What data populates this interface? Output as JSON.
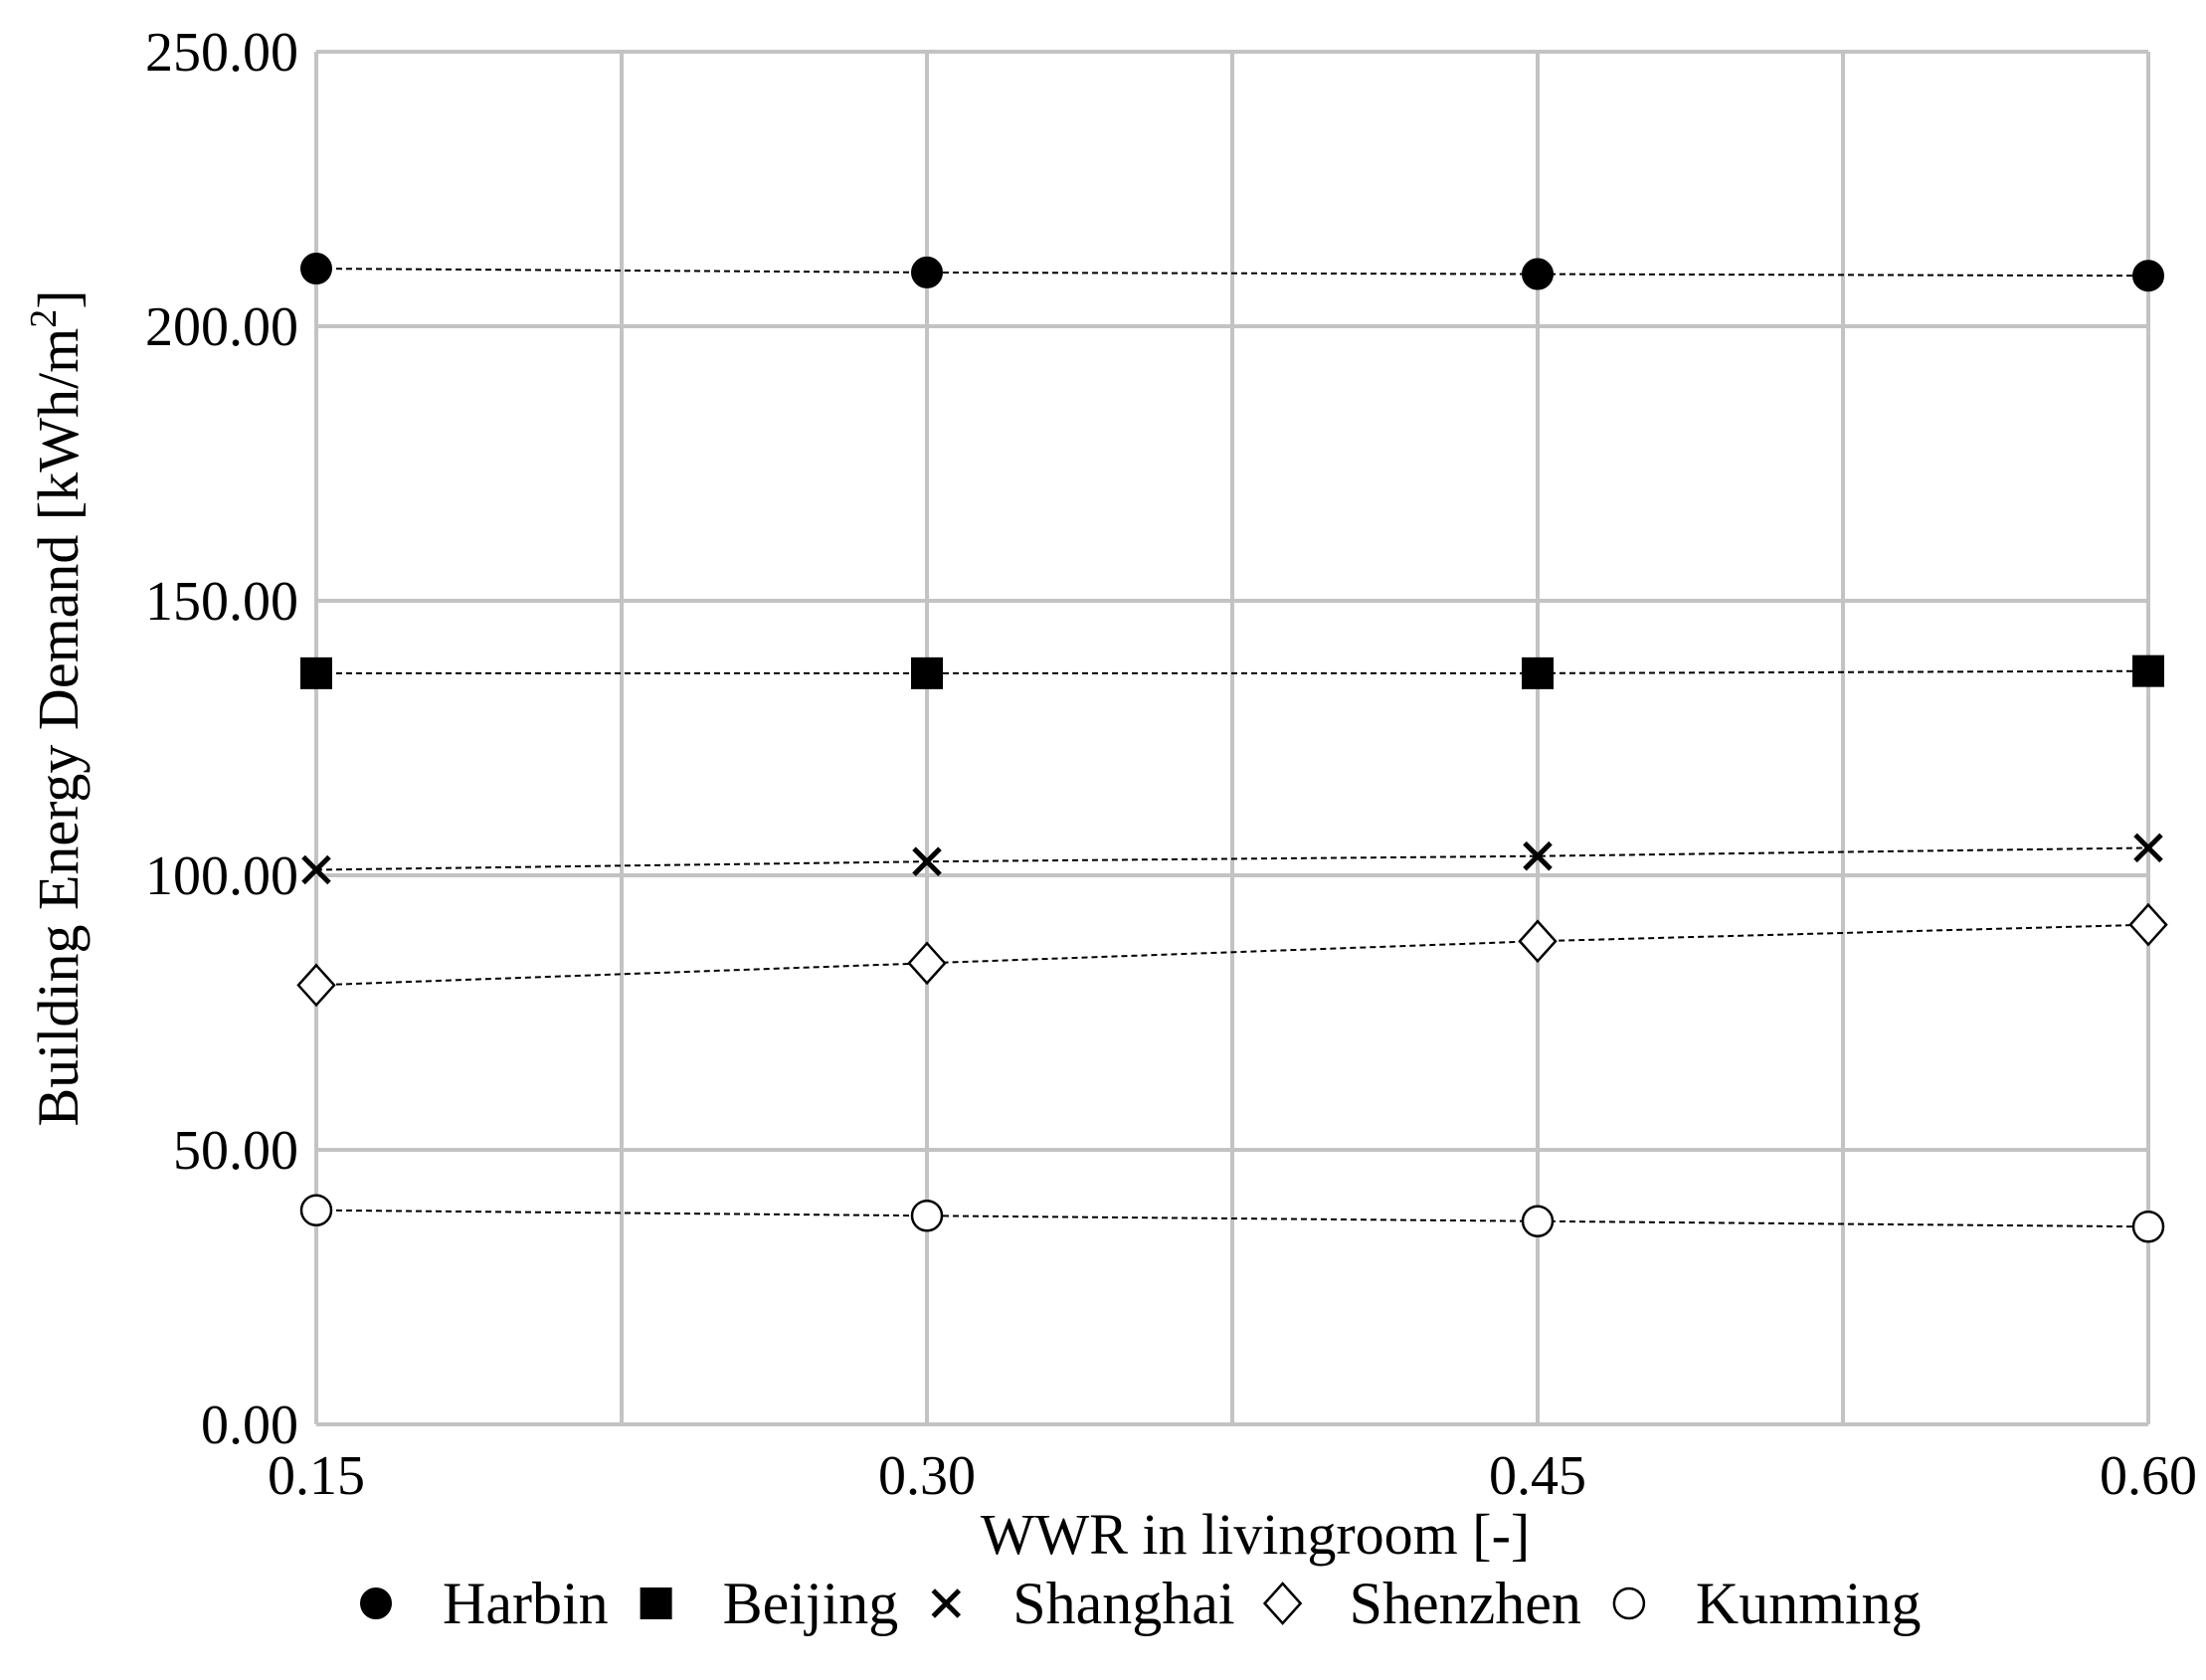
{
  "chart_data": {
    "type": "scatter",
    "title": "",
    "xlabel": "WWR in livingroom [-]",
    "ylabel": "Building Energy Demand [kWh/m",
    "ylabel_sup": "2",
    "ylabel_close": "]",
    "x": [
      0.15,
      0.3,
      0.45,
      0.6
    ],
    "x_tick_labels": [
      "0.15",
      "0.30",
      "0.45",
      "0.60"
    ],
    "y_tick_labels": [
      "0.00",
      "50.00",
      "100.00",
      "150.00",
      "200.00",
      "250.00"
    ],
    "y_ticks": [
      0,
      50,
      100,
      150,
      200,
      250
    ],
    "xlim": [
      0.15,
      0.6
    ],
    "ylim": [
      0,
      250
    ],
    "grid": true,
    "legend_position": "bottom",
    "series": [
      {
        "name": "Harbin",
        "marker": "filled-circle",
        "values": [
          210.5,
          209.8,
          209.5,
          209.2
        ]
      },
      {
        "name": "Beijing",
        "marker": "filled-square",
        "values": [
          136.8,
          136.8,
          136.8,
          137.2
        ]
      },
      {
        "name": "Shanghai",
        "marker": "cross",
        "values": [
          101.0,
          102.5,
          103.5,
          105.0
        ]
      },
      {
        "name": "Shenzhen",
        "marker": "open-diamond",
        "values": [
          80.0,
          84.0,
          88.0,
          91.0
        ]
      },
      {
        "name": "Kunming",
        "marker": "open-circle",
        "values": [
          39.0,
          38.0,
          37.0,
          36.0
        ]
      }
    ]
  }
}
